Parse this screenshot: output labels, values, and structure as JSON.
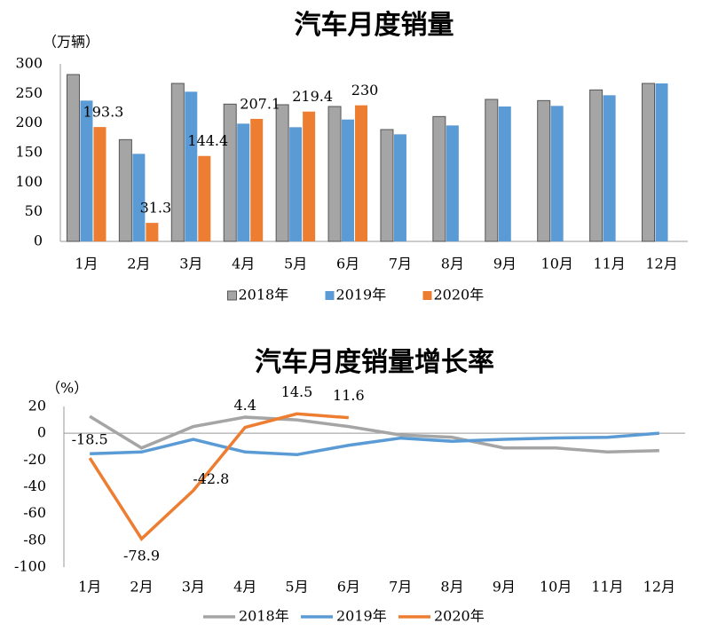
{
  "chart_data": [
    {
      "type": "bar",
      "title": "汽车月度销量",
      "y_label": "（万辆）",
      "categories": [
        "1月",
        "2月",
        "3月",
        "4月",
        "5月",
        "6月",
        "7月",
        "8月",
        "9月",
        "10月",
        "11月",
        "12月"
      ],
      "series": [
        {
          "name": "2018年",
          "color": "#a5a5a5",
          "values": [
            282,
            172,
            267,
            232,
            231,
            228,
            189,
            211,
            240,
            238,
            256,
            267
          ]
        },
        {
          "name": "2019年",
          "color": "#5b9bd5",
          "values": [
            238,
            148,
            253,
            199,
            193,
            206,
            181,
            196,
            228,
            229,
            247,
            267
          ]
        },
        {
          "name": "2020年",
          "color": "#ed7d31",
          "values": [
            193.3,
            31.3,
            144.4,
            207.1,
            219.4,
            230,
            null,
            null,
            null,
            null,
            null,
            null
          ]
        }
      ],
      "ylim": [
        0,
        300
      ],
      "yticks": [
        0,
        50,
        100,
        150,
        200,
        250,
        300
      ],
      "grid": false,
      "legend": "bottom"
    },
    {
      "type": "line",
      "title": "汽车月度销量增长率",
      "y_label": "（%）",
      "categories": [
        "1月",
        "2月",
        "3月",
        "4月",
        "5月",
        "6月",
        "7月",
        "8月",
        "9月",
        "10月",
        "11月",
        "12月"
      ],
      "series": [
        {
          "name": "2018年",
          "color": "#a5a5a5",
          "values": [
            12.6,
            -11,
            5,
            12,
            10,
            5,
            -1.3,
            -3,
            -11,
            -11,
            -14,
            -13
          ]
        },
        {
          "name": "2019年",
          "color": "#5b9bd5",
          "values": [
            -15.3,
            -14,
            -4.6,
            -14,
            -16,
            -9,
            -3.6,
            -6,
            -4.5,
            -3.5,
            -3,
            0
          ]
        },
        {
          "name": "2020年",
          "color": "#ed7d31",
          "values": [
            -18.5,
            -78.9,
            -42.8,
            4.4,
            14.5,
            11.6,
            null,
            null,
            null,
            null,
            null,
            null
          ]
        }
      ],
      "ylim": [
        -100,
        20
      ],
      "yticks": [
        -100,
        -80,
        -60,
        -40,
        -20,
        0,
        20
      ],
      "grid": false,
      "legend": "bottom"
    }
  ]
}
